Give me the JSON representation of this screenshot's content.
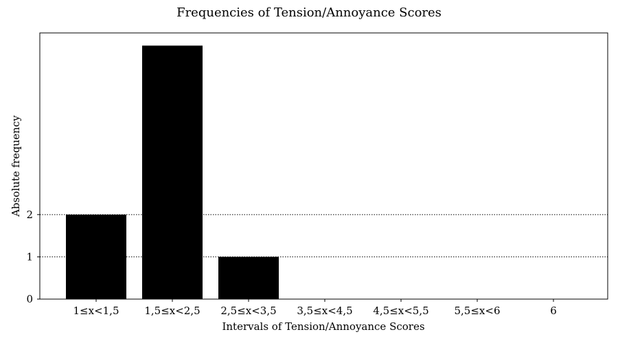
{
  "chart_data": {
    "type": "bar",
    "title": "Frequencies of Tension/Annoyance Scores",
    "xlabel": "Intervals of Tension/Annoyance Scores",
    "ylabel": "Absolute frequency",
    "categories": [
      "1≤x<1,5",
      "1,5≤x<2,5",
      "2,5≤x<3,5",
      "3,5≤x<4,5",
      "4,5≤x<5,5",
      "5,5≤x<6",
      "6"
    ],
    "values": [
      2,
      6,
      1,
      0,
      0,
      0,
      0
    ],
    "ylim": [
      0,
      6.3
    ],
    "yticks": [
      0,
      1,
      2
    ],
    "gridlines_y": [
      1,
      2
    ],
    "grid_style": "dotted",
    "bar_color": "#000000"
  }
}
